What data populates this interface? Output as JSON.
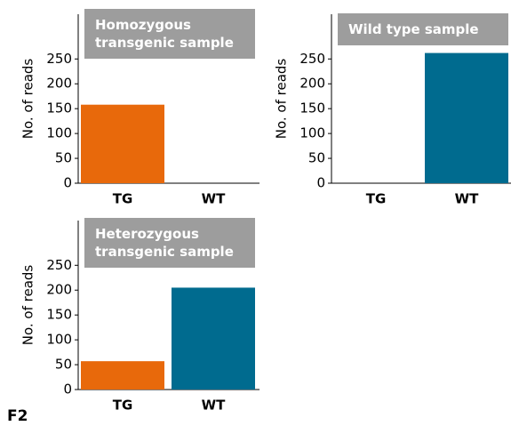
{
  "figure_label": "F2",
  "chart_data": [
    {
      "type": "bar",
      "title": "Homozygous transgenic sample",
      "ylabel": "No. of reads",
      "categories": [
        "TG",
        "WT"
      ],
      "values": [
        158,
        0
      ],
      "colors": [
        "#e8690b",
        "#006b8f"
      ],
      "ylim": [
        0,
        340
      ],
      "yticks": [
        0,
        50,
        100,
        150,
        200,
        250
      ]
    },
    {
      "type": "bar",
      "title": "Wild type sample",
      "ylabel": "No. of reads",
      "categories": [
        "TG",
        "WT"
      ],
      "values": [
        0,
        262
      ],
      "colors": [
        "#e8690b",
        "#006b8f"
      ],
      "ylim": [
        0,
        340
      ],
      "yticks": [
        0,
        50,
        100,
        150,
        200,
        250
      ]
    },
    {
      "type": "bar",
      "title": "Heterozygous transgenic sample",
      "ylabel": "No. of reads",
      "categories": [
        "TG",
        "WT"
      ],
      "values": [
        57,
        205
      ],
      "colors": [
        "#e8690b",
        "#006b8f"
      ],
      "ylim": [
        0,
        340
      ],
      "yticks": [
        0,
        50,
        100,
        150,
        200,
        250
      ]
    }
  ]
}
